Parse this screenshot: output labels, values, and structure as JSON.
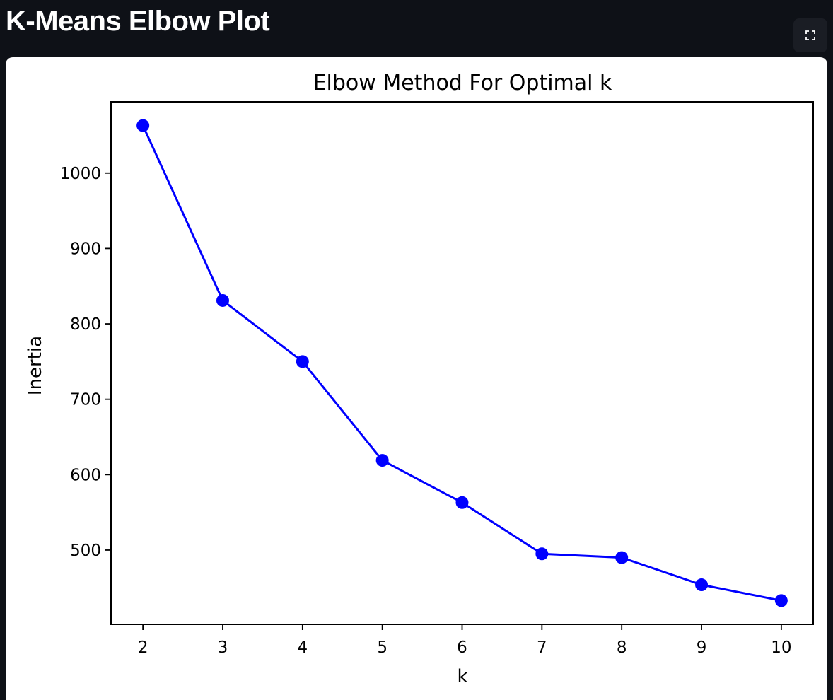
{
  "header": {
    "title": "K-Means Elbow Plot",
    "fullscreen_icon": "expand-icon"
  },
  "chart_data": {
    "type": "line",
    "title": "Elbow Method For Optimal k",
    "xlabel": "k",
    "ylabel": "Inertia",
    "x": [
      2,
      3,
      4,
      5,
      6,
      7,
      8,
      9,
      10
    ],
    "series": [
      {
        "values": [
          1063,
          831,
          750,
          619,
          563,
          495,
          490,
          454,
          433
        ],
        "color": "#0000ff",
        "marker": "o"
      }
    ],
    "xticks": [
      2,
      3,
      4,
      5,
      6,
      7,
      8,
      9,
      10
    ],
    "yticks": [
      500,
      600,
      700,
      800,
      900,
      1000
    ],
    "xlim": [
      1.6,
      10.4
    ],
    "ylim": [
      401.5,
      1094.5
    ],
    "grid": false
  }
}
